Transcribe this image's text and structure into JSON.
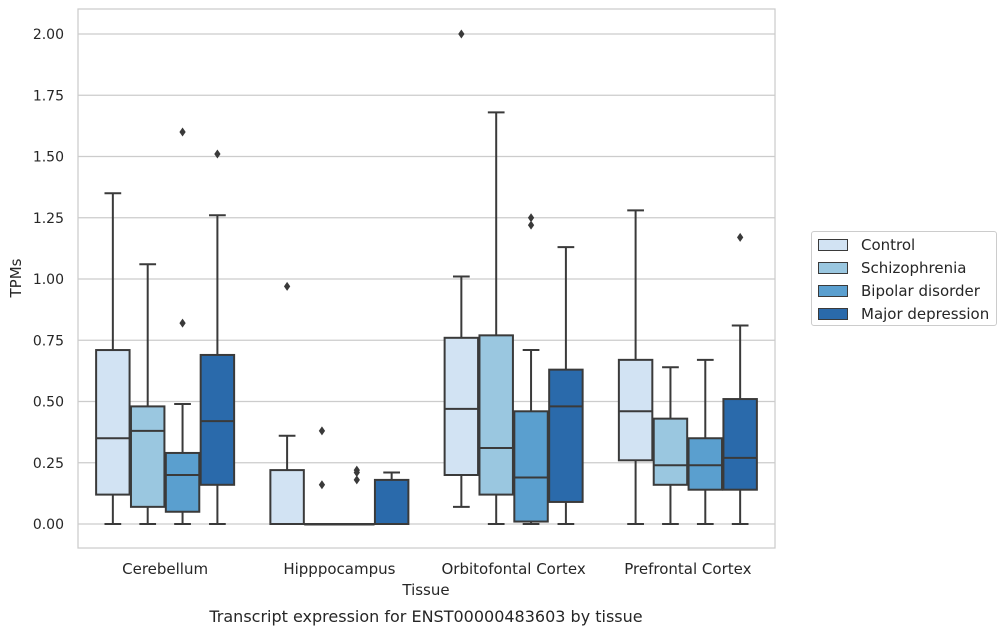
{
  "chart_data": {
    "type": "box",
    "title": "Transcript expression for ENST00000483603 by tissue",
    "xlabel": "Tissue",
    "ylabel": "TPMs",
    "ylim": [
      -0.1,
      2.1
    ],
    "yticks": [
      "0.00",
      "0.25",
      "0.50",
      "0.75",
      "1.00",
      "1.25",
      "1.50",
      "1.75",
      "2.00"
    ],
    "ytick_values": [
      0,
      0.25,
      0.5,
      0.75,
      1.0,
      1.25,
      1.5,
      1.75,
      2.0
    ],
    "categories": [
      "Cerebellum",
      "Hipppocampus",
      "Orbitofontal Cortex",
      "Prefrontal Cortex"
    ],
    "grid": true,
    "legend_position": "right",
    "series": [
      {
        "name": "Control",
        "color": "#d2e3f3",
        "boxes": [
          {
            "whislo": 0.0,
            "q1": 0.12,
            "med": 0.35,
            "q3": 0.71,
            "whishi": 1.35,
            "fliers": []
          },
          {
            "whislo": 0.0,
            "q1": 0.0,
            "med": 0.0,
            "q3": 0.22,
            "whishi": 0.36,
            "fliers": [
              0.97
            ]
          },
          {
            "whislo": 0.07,
            "q1": 0.2,
            "med": 0.47,
            "q3": 0.76,
            "whishi": 1.01,
            "fliers": [
              2.0
            ]
          },
          {
            "whislo": 0.0,
            "q1": 0.26,
            "med": 0.46,
            "q3": 0.67,
            "whishi": 1.28,
            "fliers": []
          }
        ]
      },
      {
        "name": "Schizophrenia",
        "color": "#9ac7e0",
        "boxes": [
          {
            "whislo": 0.0,
            "q1": 0.07,
            "med": 0.38,
            "q3": 0.48,
            "whishi": 1.06,
            "fliers": []
          },
          {
            "whislo": 0.0,
            "q1": 0.0,
            "med": 0.0,
            "q3": 0.0,
            "whishi": 0.0,
            "fliers": [
              0.16,
              0.38
            ]
          },
          {
            "whislo": 0.0,
            "q1": 0.12,
            "med": 0.31,
            "q3": 0.77,
            "whishi": 1.68,
            "fliers": []
          },
          {
            "whislo": 0.0,
            "q1": 0.16,
            "med": 0.24,
            "q3": 0.43,
            "whishi": 0.64,
            "fliers": []
          }
        ]
      },
      {
        "name": "Bipolar disorder",
        "color": "#5a9fcf",
        "boxes": [
          {
            "whislo": 0.0,
            "q1": 0.05,
            "med": 0.2,
            "q3": 0.29,
            "whishi": 0.49,
            "fliers": [
              0.82,
              1.6
            ]
          },
          {
            "whislo": 0.0,
            "q1": 0.0,
            "med": 0.0,
            "q3": 0.0,
            "whishi": 0.0,
            "fliers": [
              0.18,
              0.21,
              0.22
            ]
          },
          {
            "whislo": 0.0,
            "q1": 0.01,
            "med": 0.19,
            "q3": 0.46,
            "whishi": 0.71,
            "fliers": [
              1.22,
              1.25
            ]
          },
          {
            "whislo": 0.0,
            "q1": 0.14,
            "med": 0.24,
            "q3": 0.35,
            "whishi": 0.67,
            "fliers": []
          }
        ]
      },
      {
        "name": "Major depression",
        "color": "#2a6aab",
        "boxes": [
          {
            "whislo": 0.0,
            "q1": 0.16,
            "med": 0.42,
            "q3": 0.69,
            "whishi": 1.26,
            "fliers": [
              1.51
            ]
          },
          {
            "whislo": 0.0,
            "q1": 0.0,
            "med": 0.0,
            "q3": 0.18,
            "whishi": 0.21,
            "fliers": []
          },
          {
            "whislo": 0.0,
            "q1": 0.09,
            "med": 0.48,
            "q3": 0.63,
            "whishi": 1.13,
            "fliers": []
          },
          {
            "whislo": 0.0,
            "q1": 0.14,
            "med": 0.27,
            "q3": 0.51,
            "whishi": 0.81,
            "fliers": [
              1.17
            ]
          }
        ]
      }
    ]
  }
}
